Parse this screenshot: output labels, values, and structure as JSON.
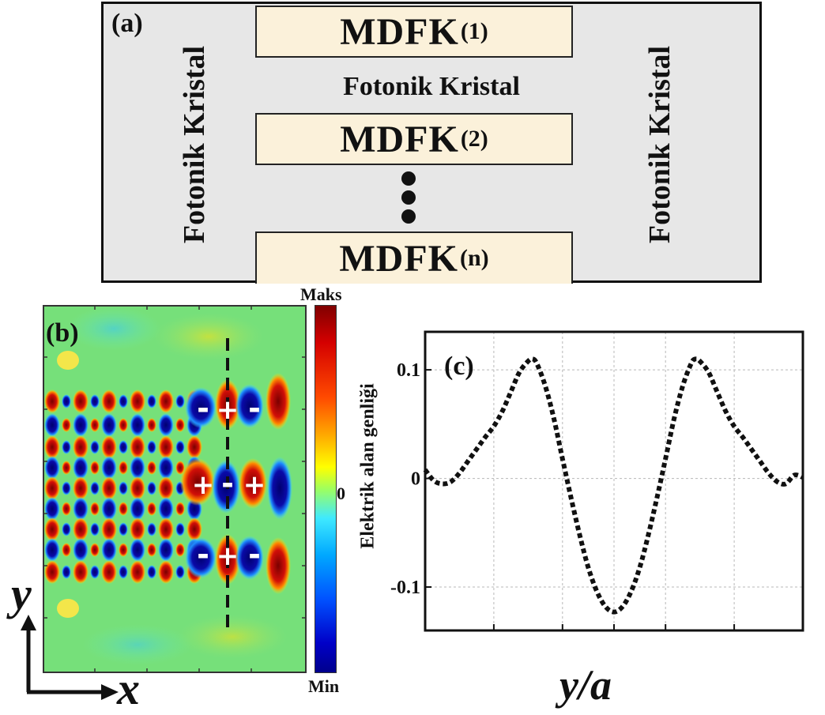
{
  "panel_a": {
    "label": "(a)",
    "left_side_label": "Fotonik Kristal",
    "right_side_label": "Fotonik Kristal",
    "center_label": "Fotonik Kristal",
    "boxes": [
      {
        "main": "MDFK",
        "index": "(1)"
      },
      {
        "main": "MDFK",
        "index": "(2)"
      },
      {
        "main": "MDFK",
        "index": "(n)"
      }
    ],
    "colors": {
      "background": "#e7e7e7",
      "box_fill": "#fbf1da"
    }
  },
  "panel_b": {
    "label": "(b)",
    "colorbar": {
      "max_label": "Maks",
      "zero_label": "0",
      "min_label": "Min"
    },
    "axis_y": "y",
    "axis_x": "x",
    "mode_signs": [
      [
        "-",
        "+",
        "-"
      ],
      [
        "+",
        "-",
        "+"
      ],
      [
        "-",
        "+",
        "-"
      ]
    ],
    "colors": {
      "field_background": "#76e07a",
      "positive": "#c8100a",
      "negative": "#0a0a96"
    }
  },
  "panel_c": {
    "label": "(c)",
    "chart_data": {
      "type": "line",
      "title": "",
      "xlabel": "y/a",
      "ylabel": "Elektrik alan genliği",
      "xlim": [
        -11,
        11
      ],
      "ylim": [
        -0.14,
        0.135
      ],
      "xticks": [
        "-11",
        "-7",
        "-3",
        "0",
        "3",
        "7",
        "11"
      ],
      "xtick_values": [
        -11,
        -7,
        -3,
        0,
        3,
        7,
        11
      ],
      "yticks": [
        "0.1",
        "0",
        "-0.1"
      ],
      "ytick_values": [
        0.1,
        0,
        -0.1
      ],
      "grid": true,
      "line_style": "dotted",
      "line_color": "#111111",
      "x": [
        -11,
        -10.5,
        -10,
        -9.5,
        -9,
        -8.5,
        -8,
        -7.5,
        -7,
        -6.5,
        -6,
        -5.5,
        -5,
        -4.75,
        -4.5,
        -4,
        -3.5,
        -3,
        -2.5,
        -2,
        -1.5,
        -1,
        -0.5,
        0,
        0.5,
        1,
        1.5,
        2,
        2.5,
        3,
        3.5,
        4,
        4.5,
        4.75,
        5,
        5.5,
        6,
        6.5,
        7,
        7.5,
        8,
        8.5,
        9,
        9.5,
        10,
        10.5,
        11
      ],
      "y": [
        0.008,
        -0.002,
        -0.005,
        -0.003,
        0.005,
        0.016,
        0.027,
        0.038,
        0.048,
        0.062,
        0.08,
        0.098,
        0.108,
        0.11,
        0.106,
        0.085,
        0.055,
        0.018,
        -0.018,
        -0.052,
        -0.082,
        -0.104,
        -0.118,
        -0.123,
        -0.118,
        -0.104,
        -0.082,
        -0.052,
        -0.018,
        0.018,
        0.055,
        0.085,
        0.106,
        0.11,
        0.108,
        0.098,
        0.08,
        0.062,
        0.048,
        0.038,
        0.027,
        0.016,
        0.005,
        -0.003,
        -0.005,
        0.003,
        0.001
      ]
    }
  }
}
